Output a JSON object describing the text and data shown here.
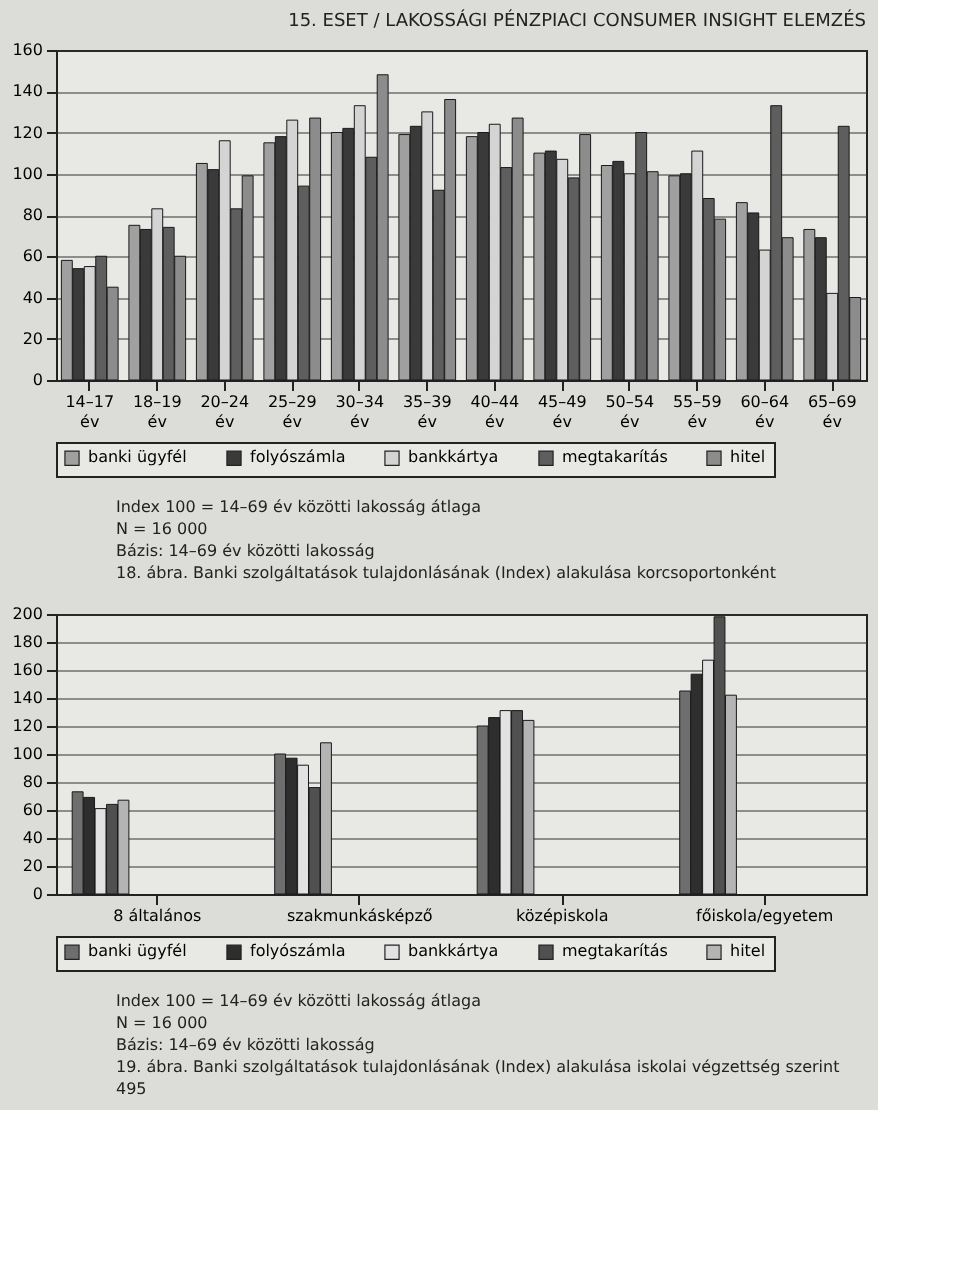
{
  "chart_data": [
    {
      "type": "bar",
      "title": "15. ESET / LAKOSSÁGI PÉNZPIACI CONSUMER INSIGHT ELEMZÉS",
      "categories": [
        "14–17\név",
        "18–19\név",
        "20–24\név",
        "25–29\név",
        "30–34\név",
        "35–39\név",
        "40–44\név",
        "45–49\név",
        "50–54\név",
        "55–59\név",
        "60–64\név",
        "65–69\név"
      ],
      "series": [
        {
          "name": "banki ügyfél",
          "color": "#a0a0a0",
          "values": [
            58,
            75,
            105,
            115,
            120,
            119,
            118,
            110,
            104,
            99,
            86,
            73
          ]
        },
        {
          "name": "folyószámla",
          "color": "#3a3a3a",
          "values": [
            54,
            73,
            102,
            118,
            122,
            123,
            120,
            111,
            106,
            100,
            81,
            69
          ]
        },
        {
          "name": "bankkártya",
          "color": "#d4d4d4",
          "values": [
            55,
            83,
            116,
            126,
            133,
            130,
            124,
            107,
            100,
            111,
            63,
            42
          ]
        },
        {
          "name": "megtakarítás",
          "color": "#5e5e5e",
          "values": [
            60,
            74,
            83,
            94,
            108,
            92,
            103,
            98,
            120,
            88,
            133,
            123
          ]
        },
        {
          "name": "hitel",
          "color": "#8c8c8c",
          "values": [
            45,
            60,
            99,
            127,
            148,
            136,
            127,
            119,
            101,
            78,
            69,
            40
          ]
        }
      ],
      "ylim": [
        0,
        160
      ],
      "yticks": [
        0,
        20,
        40,
        60,
        80,
        100,
        120,
        140,
        160
      ],
      "grid": "y",
      "legend": "bottom",
      "annotations": [
        "Index 100 = 14–69 év közötti lakosság átlaga",
        "N = 16 000",
        "Bázis: 14–69 év közötti lakosság",
        "18. ábra. Banki szolgáltatások tulajdonlásának (Index) alakulása korcsoportonként"
      ]
    },
    {
      "type": "bar",
      "categories": [
        "8 általános",
        "szakmunkásképző",
        "középiskola",
        "főiskola/egyetem"
      ],
      "series": [
        {
          "name": "banki ügyfél",
          "color": "#6e6e6e",
          "values": [
            73,
            100,
            120,
            145
          ]
        },
        {
          "name": "folyószámla",
          "color": "#2e2e2e",
          "values": [
            69,
            97,
            126,
            157
          ]
        },
        {
          "name": "bankkártya",
          "color": "#e2e2e2",
          "values": [
            61,
            92,
            131,
            167
          ]
        },
        {
          "name": "megtakarítás",
          "color": "#505050",
          "values": [
            64,
            76,
            131,
            198
          ]
        },
        {
          "name": "hitel",
          "color": "#b4b4b4",
          "values": [
            67,
            108,
            124,
            142
          ]
        }
      ],
      "ylim": [
        0,
        200
      ],
      "yticks": [
        0,
        20,
        40,
        60,
        80,
        100,
        120,
        140,
        160,
        180,
        200
      ],
      "grid": "y",
      "legend": "bottom",
      "annotations": [
        "Index 100 = 14–69 év közötti lakosság átlaga",
        "N = 16 000",
        "Bázis: 14–69 év közötti lakosság",
        "19. ábra. Banki szolgáltatások tulajdonlásának (Index) alakulása iskolai végzettség szerint",
        "495"
      ]
    }
  ]
}
